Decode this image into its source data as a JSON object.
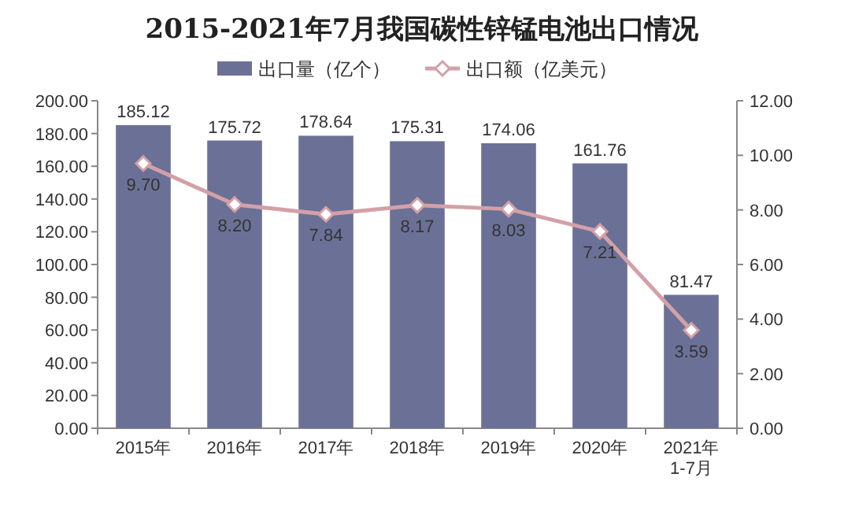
{
  "chart_data": {
    "type": "bar",
    "title": "2015-2021年7月我国碳性锌锰电池出口情况",
    "categories": [
      "2015年",
      "2016年",
      "2017年",
      "2018年",
      "2019年",
      "2020年",
      "2021年1-7月"
    ],
    "series": [
      {
        "name": "出口量（亿个）",
        "color": "#6b7196",
        "values": [
          185.12,
          175.72,
          178.64,
          175.31,
          174.06,
          161.76,
          81.47
        ],
        "value_labels": [
          "185.12",
          "175.72",
          "178.64",
          "175.31",
          "174.06",
          "161.76",
          "81.47"
        ]
      },
      {
        "name": "出口额（亿美元）",
        "type": "line",
        "axis": "y2",
        "color": "#d4a0a8",
        "marker": "diamond",
        "values": [
          9.7,
          8.2,
          7.84,
          8.17,
          8.03,
          7.21,
          3.59
        ],
        "value_labels": [
          "9.70",
          "8.20",
          "7.84",
          "8.17",
          "8.03",
          "7.21",
          "3.59"
        ]
      }
    ],
    "ylim": [
      0,
      200
    ],
    "yticks": [
      {
        "value": 0,
        "label": "0.00"
      },
      {
        "value": 20,
        "label": "20.00"
      },
      {
        "value": 40,
        "label": "40.00"
      },
      {
        "value": 60,
        "label": "60.00"
      },
      {
        "value": 80,
        "label": "80.00"
      },
      {
        "value": 100,
        "label": "100.00"
      },
      {
        "value": 120,
        "label": "120.00"
      },
      {
        "value": 140,
        "label": "140.00"
      },
      {
        "value": 160,
        "label": "160.00"
      },
      {
        "value": 180,
        "label": "180.00"
      },
      {
        "value": 200,
        "label": "200.00"
      }
    ],
    "y2lim": [
      0,
      12
    ],
    "y2ticks": [
      {
        "value": 0,
        "label": "0.00"
      },
      {
        "value": 2,
        "label": "2.00"
      },
      {
        "value": 4,
        "label": "4.00"
      },
      {
        "value": 6,
        "label": "6.00"
      },
      {
        "value": 8,
        "label": "8.00"
      },
      {
        "value": 10,
        "label": "10.00"
      },
      {
        "value": 12,
        "label": "12.00"
      }
    ],
    "legend": "top"
  }
}
